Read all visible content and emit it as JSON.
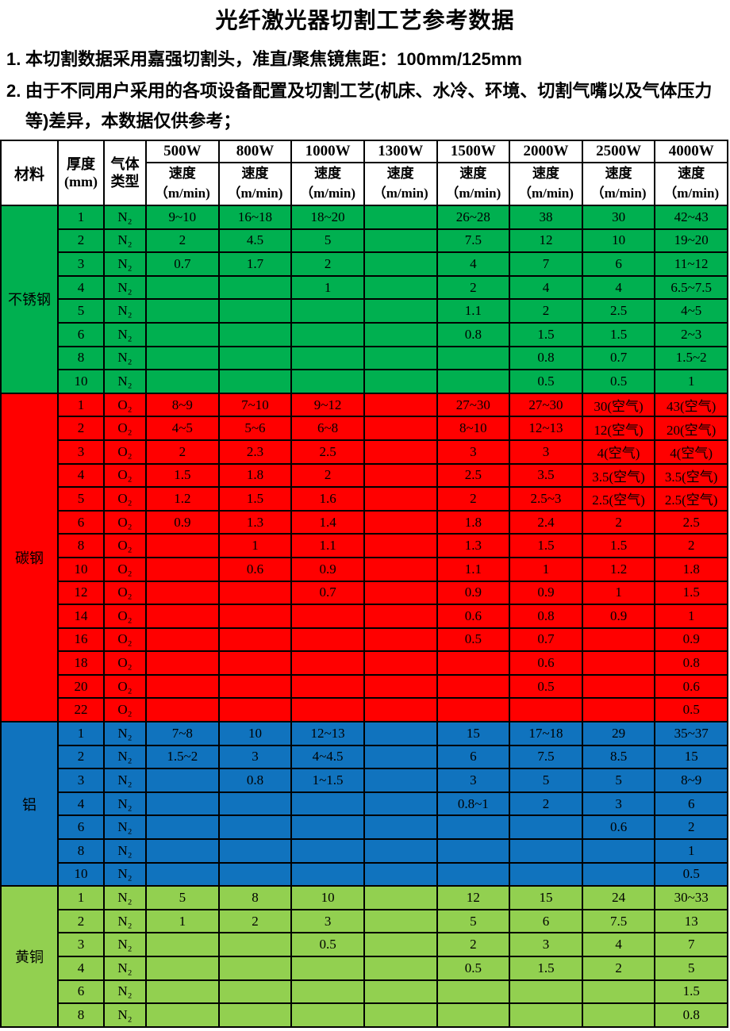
{
  "title": "光纤激光器切割工艺参考数据",
  "notes": [
    {
      "num": "1.",
      "text": "本切割数据采用嘉强切割头，准直/聚焦镜焦距：100mm/125mm"
    },
    {
      "num": "2.",
      "text": "由于不同用户采用的各项设备配置及切割工艺(机床、水冷、环境、切割气嘴以及气体压力等)差异，本数据仅供参考；"
    }
  ],
  "colors": {
    "header_bg": "#FFFFFF",
    "border": "#000000",
    "text": "#000000",
    "stainless_green": "#00B050",
    "carbon_red": "#FF0000",
    "aluminum_blue": "#1073BE",
    "brass_green": "#92D050"
  },
  "table": {
    "corner_header": "材料",
    "thickness_header": [
      "厚度",
      "(mm)"
    ],
    "gas_header": [
      "气体",
      "类型"
    ],
    "power_columns": [
      "500W",
      "800W",
      "1000W",
      "1300W",
      "1500W",
      "2000W",
      "2500W",
      "4000W"
    ],
    "speed_label": [
      "速度",
      "（m/min)"
    ],
    "sections": [
      {
        "material": "不锈钢",
        "color": "#00B050",
        "rows": [
          {
            "t": "1",
            "gas": "N₂",
            "v": [
              "9~10",
              "16~18",
              "18~20",
              "",
              "26~28",
              "38",
              "30",
              "42~43"
            ]
          },
          {
            "t": "2",
            "gas": "N₂",
            "v": [
              "2",
              "4.5",
              "5",
              "",
              "7.5",
              "12",
              "10",
              "19~20"
            ]
          },
          {
            "t": "3",
            "gas": "N₂",
            "v": [
              "0.7",
              "1.7",
              "2",
              "",
              "4",
              "7",
              "6",
              "11~12"
            ]
          },
          {
            "t": "4",
            "gas": "N₂",
            "v": [
              "",
              "",
              "1",
              "",
              "2",
              "4",
              "4",
              "6.5~7.5"
            ]
          },
          {
            "t": "5",
            "gas": "N₂",
            "v": [
              "",
              "",
              "",
              "",
              "1.1",
              "2",
              "2.5",
              "4~5"
            ]
          },
          {
            "t": "6",
            "gas": "N₂",
            "v": [
              "",
              "",
              "",
              "",
              "0.8",
              "1.5",
              "1.5",
              "2~3"
            ]
          },
          {
            "t": "8",
            "gas": "N₂",
            "v": [
              "",
              "",
              "",
              "",
              "",
              "0.8",
              "0.7",
              "1.5~2"
            ]
          },
          {
            "t": "10",
            "gas": "N₂",
            "v": [
              "",
              "",
              "",
              "",
              "",
              "0.5",
              "0.5",
              "1"
            ]
          }
        ]
      },
      {
        "material": "碳钢",
        "color": "#FF0000",
        "rows": [
          {
            "t": "1",
            "gas": "O₂",
            "v": [
              "8~9",
              "7~10",
              "9~12",
              "",
              "27~30",
              "27~30",
              "30(空气)",
              "43(空气)"
            ]
          },
          {
            "t": "2",
            "gas": "O₂",
            "v": [
              "4~5",
              "5~6",
              "6~8",
              "",
              "8~10",
              "12~13",
              "12(空气)",
              "20(空气)"
            ]
          },
          {
            "t": "3",
            "gas": "O₂",
            "v": [
              "2",
              "2.3",
              "2.5",
              "",
              "3",
              "3",
              "4(空气)",
              "4(空气)"
            ]
          },
          {
            "t": "4",
            "gas": "O₂",
            "v": [
              "1.5",
              "1.8",
              "2",
              "",
              "2.5",
              "3.5",
              "3.5(空气)",
              "3.5(空气)"
            ]
          },
          {
            "t": "5",
            "gas": "O₂",
            "v": [
              "1.2",
              "1.5",
              "1.6",
              "",
              "2",
              "2.5~3",
              "2.5(空气)",
              "2.5(空气)"
            ]
          },
          {
            "t": "6",
            "gas": "O₂",
            "v": [
              "0.9",
              "1.3",
              "1.4",
              "",
              "1.8",
              "2.4",
              "2",
              "2.5"
            ]
          },
          {
            "t": "8",
            "gas": "O₂",
            "v": [
              "",
              "1",
              "1.1",
              "",
              "1.3",
              "1.5",
              "1.5",
              "2"
            ]
          },
          {
            "t": "10",
            "gas": "O₂",
            "v": [
              "",
              "0.6",
              "0.9",
              "",
              "1.1",
              "1",
              "1.2",
              "1.8"
            ]
          },
          {
            "t": "12",
            "gas": "O₂",
            "v": [
              "",
              "",
              "0.7",
              "",
              "0.9",
              "0.9",
              "1",
              "1.5"
            ]
          },
          {
            "t": "14",
            "gas": "O₂",
            "v": [
              "",
              "",
              "",
              "",
              "0.6",
              "0.8",
              "0.9",
              "1"
            ]
          },
          {
            "t": "16",
            "gas": "O₂",
            "v": [
              "",
              "",
              "",
              "",
              "0.5",
              "0.7",
              "",
              "0.9"
            ]
          },
          {
            "t": "18",
            "gas": "O₂",
            "v": [
              "",
              "",
              "",
              "",
              "",
              "0.6",
              "",
              "0.8"
            ]
          },
          {
            "t": "20",
            "gas": "O₂",
            "v": [
              "",
              "",
              "",
              "",
              "",
              "0.5",
              "",
              "0.6"
            ]
          },
          {
            "t": "22",
            "gas": "O₂",
            "v": [
              "",
              "",
              "",
              "",
              "",
              "",
              "",
              "0.5"
            ]
          }
        ]
      },
      {
        "material": "铝",
        "color": "#1073BE",
        "rows": [
          {
            "t": "1",
            "gas": "N₂",
            "v": [
              "7~8",
              "10",
              "12~13",
              "",
              "15",
              "17~18",
              "29",
              "35~37"
            ]
          },
          {
            "t": "2",
            "gas": "N₂",
            "v": [
              "1.5~2",
              "3",
              "4~4.5",
              "",
              "6",
              "7.5",
              "8.5",
              "15"
            ]
          },
          {
            "t": "3",
            "gas": "N₂",
            "v": [
              "",
              "0.8",
              "1~1.5",
              "",
              "3",
              "5",
              "5",
              "8~9"
            ]
          },
          {
            "t": "4",
            "gas": "N₂",
            "v": [
              "",
              "",
              "",
              "",
              "0.8~1",
              "2",
              "3",
              "6"
            ]
          },
          {
            "t": "6",
            "gas": "N₂",
            "v": [
              "",
              "",
              "",
              "",
              "",
              "",
              "0.6",
              "2"
            ]
          },
          {
            "t": "8",
            "gas": "N₂",
            "v": [
              "",
              "",
              "",
              "",
              "",
              "",
              "",
              "1"
            ]
          },
          {
            "t": "10",
            "gas": "N₂",
            "v": [
              "",
              "",
              "",
              "",
              "",
              "",
              "",
              "0.5"
            ]
          }
        ]
      },
      {
        "material": "黄铜",
        "color": "#92D050",
        "rows": [
          {
            "t": "1",
            "gas": "N₂",
            "v": [
              "5",
              "8",
              "10",
              "",
              "12",
              "15",
              "24",
              "30~33"
            ]
          },
          {
            "t": "2",
            "gas": "N₂",
            "v": [
              "1",
              "2",
              "3",
              "",
              "5",
              "6",
              "7.5",
              "13"
            ]
          },
          {
            "t": "3",
            "gas": "N₂",
            "v": [
              "",
              "",
              "0.5",
              "",
              "2",
              "3",
              "4",
              "7"
            ]
          },
          {
            "t": "4",
            "gas": "N₂",
            "v": [
              "",
              "",
              "",
              "",
              "0.5",
              "1.5",
              "2",
              "5"
            ]
          },
          {
            "t": "6",
            "gas": "N₂",
            "v": [
              "",
              "",
              "",
              "",
              "",
              "",
              "",
              "1.5"
            ]
          },
          {
            "t": "8",
            "gas": "N₂",
            "v": [
              "",
              "",
              "",
              "",
              "",
              "",
              "",
              "0.8"
            ]
          }
        ]
      }
    ]
  }
}
